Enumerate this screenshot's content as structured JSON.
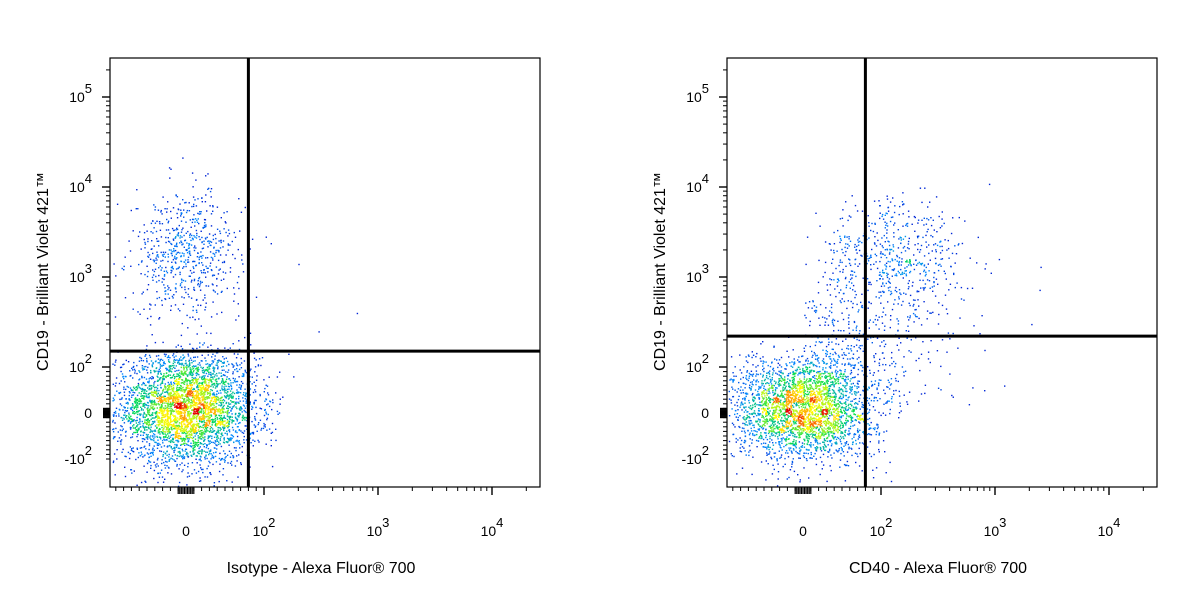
{
  "chart_data": [
    {
      "type": "scatter",
      "xlabel": "Isotype - Alexa Fluor® 700",
      "ylabel": "CD19 - Brilliant Violet 421™",
      "x_scale": "biexponential",
      "y_scale": "biexponential",
      "x_ticks": [
        "0",
        "10^2",
        "10^3",
        "10^4"
      ],
      "y_ticks": [
        "10^5",
        "10^4",
        "10^3",
        "10^2",
        "0",
        "-10^2"
      ],
      "x_gate": 80,
      "y_gate": 150,
      "colormap": [
        "#0000cc",
        "#00a0ff",
        "#00e000",
        "#ffff00",
        "#ff0000"
      ],
      "populations": [
        {
          "name": "",
          "center": [
            0,
            10
          ],
          "spread": [
            45,
            60
          ],
          "n": 3800,
          "density_peak": "high"
        },
        {
          "name": "",
          "center": [
            0,
            1800
          ],
          "spread": [
            35,
            0.35
          ],
          "n": 650,
          "density_peak": "medium"
        }
      ],
      "outliers": [
        [
          200,
          1400
        ],
        [
          650,
          400
        ],
        [
          300,
          250
        ],
        [
          180,
          80
        ]
      ]
    },
    {
      "type": "scatter",
      "xlabel": "CD40 - Alexa Fluor® 700",
      "ylabel": "CD19 - Brilliant Violet 421™",
      "x_scale": "biexponential",
      "y_scale": "biexponential",
      "x_ticks": [
        "0",
        "10^2",
        "10^3",
        "10^4"
      ],
      "y_ticks": [
        "10^5",
        "10^4",
        "10^3",
        "10^2",
        "0",
        "-10^2"
      ],
      "x_gate": 80,
      "y_gate": 220,
      "colormap": [
        "#0000cc",
        "#00a0ff",
        "#00e000",
        "#ffff00",
        "#ff0000"
      ],
      "populations": [
        {
          "name": "",
          "center": [
            0,
            10
          ],
          "spread": [
            45,
            55
          ],
          "n": 3000,
          "density_peak": "high"
        },
        {
          "name": "",
          "center": [
            130,
            1500
          ],
          "spread": [
            0.3,
            0.35
          ],
          "n": 600,
          "density_peak": "medium"
        },
        {
          "name": "",
          "center": [
            60,
            150
          ],
          "spread": [
            0.5,
            0.4
          ],
          "n": 350,
          "density_peak": "low"
        }
      ],
      "outliers": [
        [
          2500,
          1300
        ],
        [
          1200,
          60
        ],
        [
          800,
          50
        ]
      ]
    }
  ]
}
